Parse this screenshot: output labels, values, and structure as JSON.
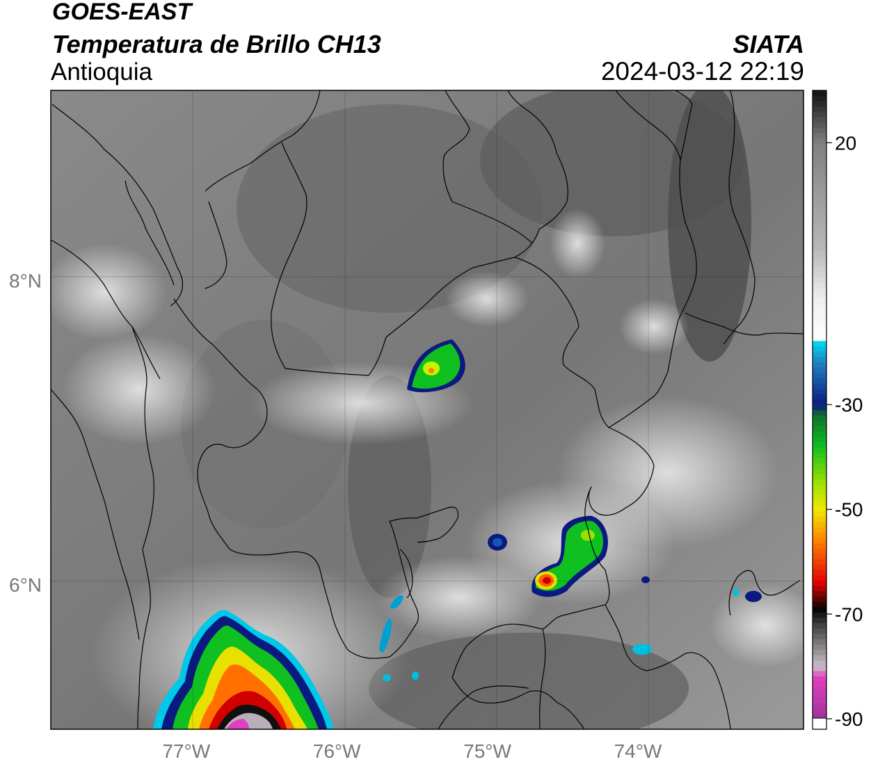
{
  "header": {
    "satellite": "GOES-EAST",
    "product": "Temperatura de Brillo CH13",
    "region": "Antioquia",
    "organization": "SIATA",
    "datetime": "2024-03-12 22:19"
  },
  "map": {
    "longitude_ticks": [
      "77°W",
      "76°W",
      "75°W",
      "74°W"
    ],
    "latitude_ticks": [
      "8°N",
      "6°N"
    ],
    "extent": {
      "lon": [
        -77.9,
        -72.9
      ],
      "lat": [
        5.05,
        9.25
      ]
    },
    "gridlines": true
  },
  "colorbar": {
    "ticks": [
      "20",
      "-30",
      "-50",
      "-70",
      "-90"
    ],
    "range": [
      -92,
      30
    ],
    "colors": {
      "warm_gray": "#5a5a5a",
      "cloud_white": "#f0f0f0",
      "cyan": "#00d8f0",
      "dark_blue": "#0a1a80",
      "green": "#10c020",
      "yellow": "#f0e800",
      "orange": "#ff8000",
      "red": "#e00000",
      "black": "#050505",
      "magenta": "#e040c0",
      "purple": "#903090"
    }
  }
}
